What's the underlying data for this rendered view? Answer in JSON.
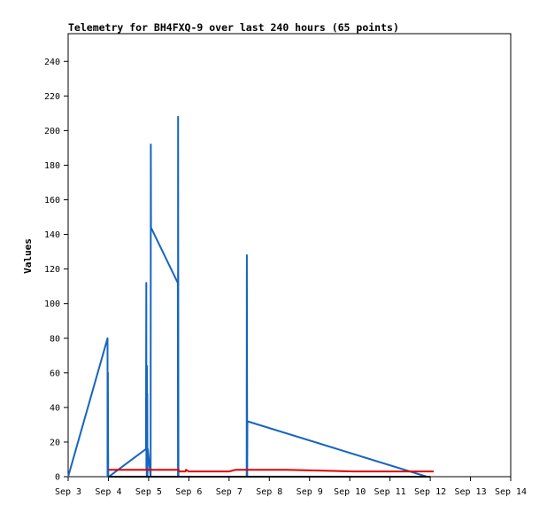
{
  "chart_data": {
    "type": "line",
    "title": "Telemetry for BH4FXQ-9 over last 240 hours (65 points)",
    "xlabel": "",
    "ylabel": "Values",
    "x_ticks": [
      "Sep 3",
      "Sep 4",
      "Sep 5",
      "Sep 6",
      "Sep 7",
      "Sep 8",
      "Sep 9",
      "Sep 10",
      "Sep 11",
      "Sep 12",
      "Sep 13",
      "Sep 14"
    ],
    "xlim": [
      0,
      264
    ],
    "ylim": [
      0,
      256
    ],
    "y_ticks": [
      0,
      20,
      40,
      60,
      80,
      100,
      120,
      140,
      160,
      180,
      200,
      220,
      240
    ],
    "grid": false,
    "legend": "none",
    "x_unit_note": "x values in hours after Sep 3 00:00",
    "series": [
      {
        "color": "#1565c0",
        "points": [
          [
            0.0,
            0
          ],
          [
            23.5,
            80
          ],
          [
            23.5,
            0
          ],
          [
            23.6,
            60
          ],
          [
            23.7,
            60
          ],
          [
            23.8,
            20
          ],
          [
            23.9,
            0
          ],
          [
            24.1,
            0
          ],
          [
            24.3,
            0
          ],
          [
            46.4,
            16
          ],
          [
            46.6,
            112
          ],
          [
            46.7,
            4
          ],
          [
            46.8,
            16
          ],
          [
            46.9,
            0
          ],
          [
            47.0,
            64
          ],
          [
            47.1,
            8
          ],
          [
            47.2,
            48
          ],
          [
            47.3,
            0
          ],
          [
            47.5,
            16
          ],
          [
            49.2,
            0
          ],
          [
            49.3,
            192
          ],
          [
            49.4,
            144
          ],
          [
            65.4,
            112
          ],
          [
            65.5,
            0
          ],
          [
            65.6,
            208
          ],
          [
            65.8,
            0
          ],
          [
            106.5,
            0
          ],
          [
            106.6,
            128
          ],
          [
            106.8,
            0
          ],
          [
            106.9,
            32
          ],
          [
            214.0,
            0
          ],
          [
            216.0,
            0
          ]
        ]
      },
      {
        "color": "#e00000",
        "points": [
          [
            24.0,
            4
          ],
          [
            50.0,
            4
          ],
          [
            66.0,
            4
          ],
          [
            66.2,
            3
          ],
          [
            70.0,
            3
          ],
          [
            70.3,
            4
          ],
          [
            72.0,
            3
          ],
          [
            96.0,
            3
          ],
          [
            100.0,
            4
          ],
          [
            130.0,
            4
          ],
          [
            170.0,
            3
          ],
          [
            204.0,
            3
          ],
          [
            218.0,
            3
          ]
        ]
      },
      {
        "color": "#000000",
        "points": [
          [
            24.0,
            0
          ],
          [
            216.0,
            0
          ]
        ]
      }
    ]
  }
}
